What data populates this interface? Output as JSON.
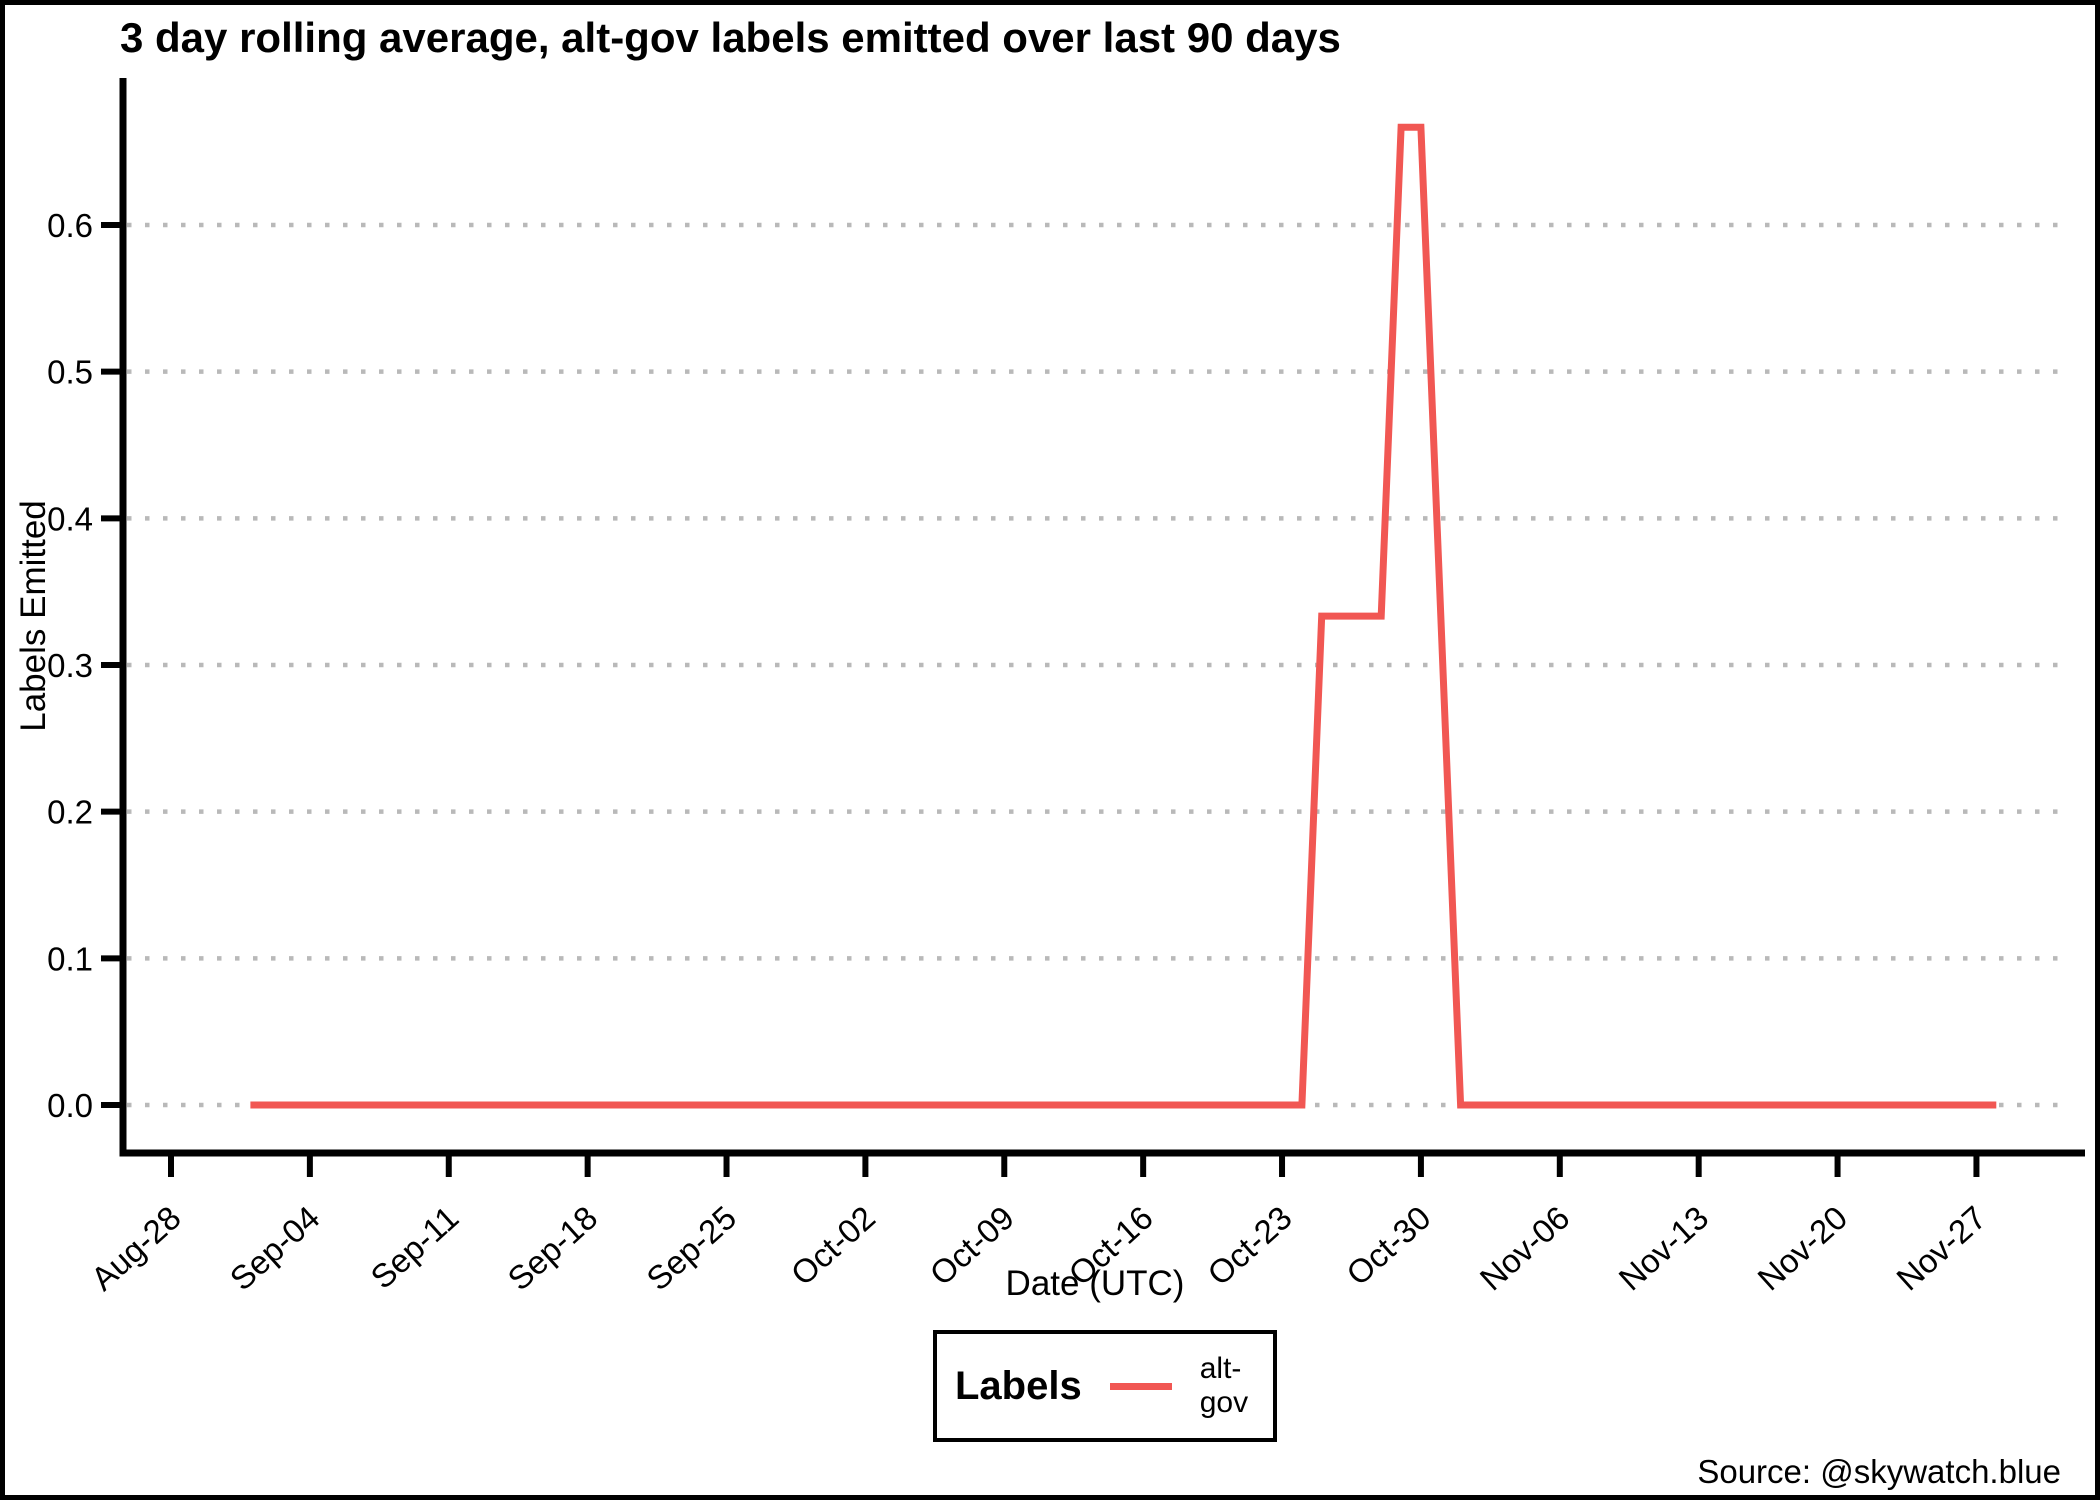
{
  "title": "3 day rolling average, alt-gov labels emitted over last 90 days",
  "source": "Source: @skywatch.blue",
  "legend": {
    "title": "Labels",
    "entries": [
      {
        "label": "alt-gov",
        "color": "#f15753"
      }
    ]
  },
  "chart_data": {
    "type": "line",
    "title": "3 day rolling average, alt-gov labels emitted over last 90 days",
    "xlabel": "Date (UTC)",
    "ylabel": "Labels Emitted",
    "x_axis": {
      "label": "Date (UTC)",
      "tick_labels": [
        "Aug-28",
        "Sep-04",
        "Sep-11",
        "Sep-18",
        "Sep-25",
        "Oct-02",
        "Oct-09",
        "Oct-16",
        "Oct-23",
        "Oct-30",
        "Nov-06",
        "Nov-13",
        "Nov-20",
        "Nov-27"
      ],
      "tick_interval_days": 7,
      "data_start": "Sep-01",
      "data_end": "Nov-28"
    },
    "y_axis": {
      "label": "Labels Emitted",
      "tick_labels": [
        "0.0",
        "0.1",
        "0.2",
        "0.3",
        "0.4",
        "0.5",
        "0.6"
      ],
      "range": [
        0,
        0.7
      ]
    },
    "grid": {
      "horizontal": true,
      "style": "dotted",
      "color": "#b9b9b9"
    },
    "legend_position": "bottom-center",
    "series": [
      {
        "name": "alt-gov",
        "color": "#f15753",
        "points": [
          [
            "Sep-01",
            0
          ],
          [
            "Oct-24",
            0
          ],
          [
            "Oct-25",
            0.3333
          ],
          [
            "Oct-26",
            0.3333
          ],
          [
            "Oct-27",
            0.3333
          ],
          [
            "Oct-28",
            0.3333
          ],
          [
            "Oct-29",
            0.6667
          ],
          [
            "Oct-30",
            0.6667
          ],
          [
            "Oct-31",
            0.3333
          ],
          [
            "Nov-01",
            0
          ],
          [
            "Nov-28",
            0
          ]
        ]
      }
    ]
  }
}
